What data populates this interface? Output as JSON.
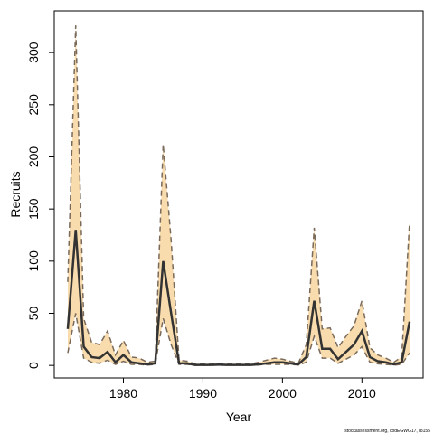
{
  "chart_data": {
    "type": "band-line",
    "x_label": "Year",
    "y_label": "Recruits",
    "footer": "stockassessment.org, codEGWG17, r8155",
    "x": [
      1973,
      1974,
      1975,
      1976,
      1977,
      1978,
      1979,
      1980,
      1981,
      1982,
      1983,
      1984,
      1985,
      1986,
      1987,
      1988,
      1989,
      1990,
      1991,
      1992,
      1993,
      1994,
      1995,
      1996,
      1997,
      1998,
      1999,
      2000,
      2001,
      2002,
      2003,
      2004,
      2005,
      2006,
      2007,
      2008,
      2009,
      2010,
      2011,
      2012,
      2013,
      2014,
      2015,
      2016
    ],
    "values": [
      35,
      130,
      18,
      8,
      7,
      13,
      3,
      10,
      3,
      2,
      1,
      2,
      100,
      50,
      2,
      2,
      0.5,
      0.5,
      0.5,
      0.8,
      0.5,
      0.5,
      0.5,
      0.5,
      1,
      2,
      3,
      3,
      2,
      1,
      8,
      62,
      16,
      16,
      6,
      13,
      20,
      33,
      8,
      4,
      3,
      1,
      3,
      42
    ],
    "upper": [
      80,
      326,
      45,
      22,
      20,
      33,
      10,
      24,
      8,
      7,
      3,
      4,
      212,
      120,
      5,
      4,
      1.5,
      1.5,
      1.5,
      2,
      1.5,
      1.5,
      1.5,
      1.5,
      3,
      5,
      7,
      6,
      4,
      2,
      20,
      132,
      35,
      36,
      17,
      28,
      38,
      62,
      17,
      10,
      7,
      3,
      8,
      138
    ],
    "lower": [
      12,
      50,
      7,
      3,
      2,
      5,
      1,
      4,
      1,
      1,
      0.3,
      1,
      45,
      20,
      1,
      1,
      0.2,
      0.2,
      0.2,
      0.2,
      0.2,
      0.2,
      0.2,
      0.2,
      0.5,
      1,
      1,
      1,
      1,
      0.5,
      3,
      28,
      7,
      7,
      2,
      6,
      10,
      18,
      3,
      1.5,
      1,
      0.3,
      1,
      12
    ],
    "color": "#333333",
    "band_color": "#f9dcae",
    "bound_color": "#7a6a5a",
    "xlim": [
      1971.3,
      2017.7
    ],
    "ylim": [
      -12,
      340
    ],
    "xticks": [
      1980,
      1990,
      2000,
      2010
    ],
    "yticks": [
      0,
      50,
      100,
      150,
      200,
      250,
      300
    ]
  }
}
